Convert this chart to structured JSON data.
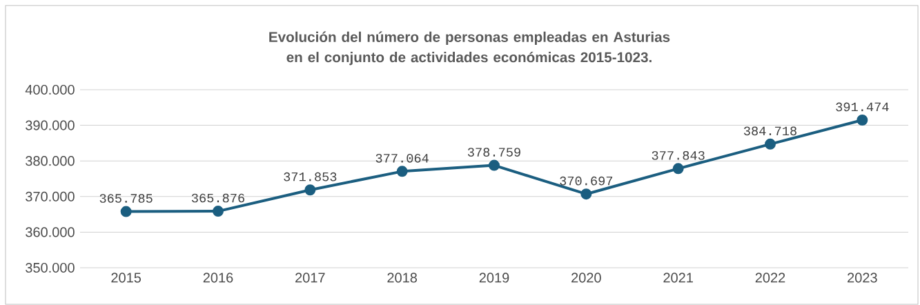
{
  "chart_data": {
    "type": "line",
    "title": "Evolución del número de personas empleadas en Asturias en el conjunto de actividades económicas 2015-1023.",
    "categories": [
      "2015",
      "2016",
      "2017",
      "2018",
      "2019",
      "2020",
      "2021",
      "2022",
      "2023"
    ],
    "values": [
      365785,
      365876,
      371853,
      377064,
      378759,
      370697,
      377843,
      384718,
      391474
    ],
    "value_labels": [
      "365.785",
      "365.876",
      "371.853",
      "377.064",
      "378.759",
      "370.697",
      "377.843",
      "384.718",
      "391.474"
    ],
    "color": "#1b5e80",
    "marker": "circle",
    "line_style": "solid",
    "grid": "y",
    "ylim": [
      350000,
      400000
    ],
    "yticks": [
      {
        "value": 350000,
        "label": "350.000"
      },
      {
        "value": 360000,
        "label": "360.000"
      },
      {
        "value": 370000,
        "label": "370.000"
      },
      {
        "value": 380000,
        "label": "380.000"
      },
      {
        "value": 390000,
        "label": "390.000"
      },
      {
        "value": 400000,
        "label": "400.000"
      }
    ]
  }
}
